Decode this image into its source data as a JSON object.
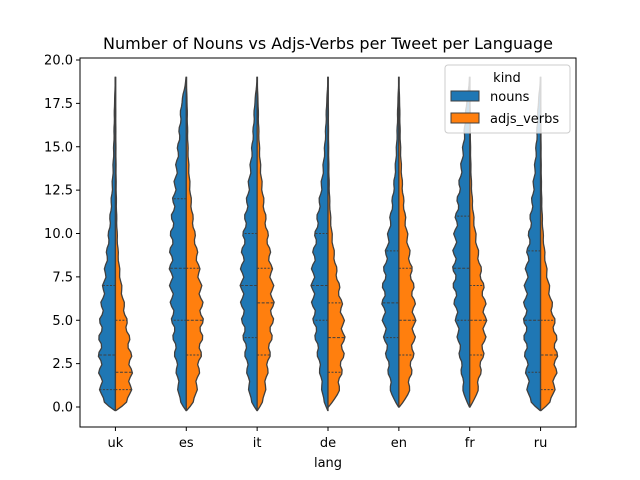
{
  "chart_data": {
    "type": "violin",
    "title": "Number of Nouns vs Adjs-Verbs per Tweet per Language",
    "xlabel": "lang",
    "ylabel": "",
    "ylim": [
      -1.1,
      20.4
    ],
    "yticks": [
      "0.0",
      "2.5",
      "5.0",
      "7.5",
      "10.0",
      "12.5",
      "15.0",
      "17.5",
      "20.0"
    ],
    "categories": [
      "uk",
      "es",
      "it",
      "de",
      "en",
      "fr",
      "ru"
    ],
    "split": true,
    "inner": "quartile",
    "legend": {
      "title": "kind",
      "placement": "upper-right"
    },
    "series": [
      {
        "name": "nouns",
        "color": "#1f77b4",
        "quartiles": [
          [
            1,
            3,
            7
          ],
          [
            5,
            8,
            12
          ],
          [
            4,
            7,
            10
          ],
          [
            5,
            7,
            10
          ],
          [
            4,
            6,
            9
          ],
          [
            5,
            8,
            11
          ],
          [
            2,
            5,
            9
          ]
        ],
        "range": [
          [
            -0.2,
            19
          ],
          [
            -0.2,
            19
          ],
          [
            -0.2,
            19
          ],
          [
            -0.2,
            19
          ],
          [
            0,
            19
          ],
          [
            0,
            19
          ],
          [
            -0.2,
            19
          ]
        ]
      },
      {
        "name": "adjs_verbs",
        "color": "#ff7f0e",
        "quartiles": [
          [
            1,
            2,
            5
          ],
          [
            3,
            5,
            8
          ],
          [
            3,
            6,
            8
          ],
          [
            2,
            4,
            6
          ],
          [
            3,
            5,
            8
          ],
          [
            3,
            5,
            7
          ],
          [
            1,
            3,
            5
          ]
        ],
        "range": [
          [
            -0.2,
            19
          ],
          [
            -0.2,
            19
          ],
          [
            -0.2,
            19
          ],
          [
            0,
            19
          ],
          [
            0,
            19
          ],
          [
            0,
            19
          ],
          [
            -0.2,
            19
          ]
        ]
      }
    ]
  }
}
